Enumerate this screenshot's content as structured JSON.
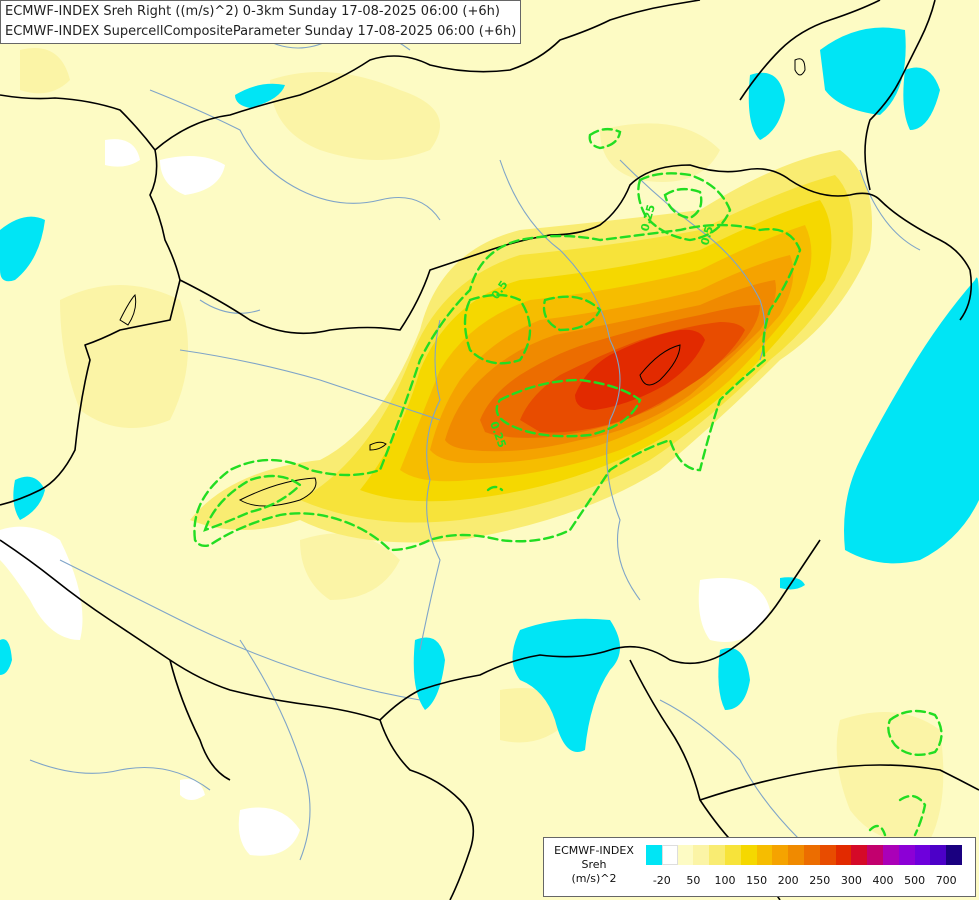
{
  "title": {
    "line1": "ECMWF-INDEX Sreh Right ((m/s)^2) 0-3km Sunday 17-08-2025 06:00 (+6h)",
    "line2": "ECMWF-INDEX SupercellCompositeParameter Sunday 17-08-2025 06:00 (+6h)"
  },
  "legend": {
    "line1": "ECMWF-INDEX",
    "line2": "Sreh",
    "line3": "(m/s)^2",
    "colors": [
      "#00e5f5",
      "#ffffff",
      "#fdfbc4",
      "#fbf4a6",
      "#f9ec72",
      "#f7e33a",
      "#f5d800",
      "#f6bd00",
      "#f5a300",
      "#f08a00",
      "#ec6d00",
      "#e84c00",
      "#e22a00",
      "#d50a28",
      "#c2006e",
      "#aa00b8",
      "#8c00d6",
      "#6e00dc",
      "#4c00c8",
      "#1a0080"
    ],
    "ticks": [
      "-20",
      "50",
      "100",
      "150",
      "200",
      "250",
      "300",
      "400",
      "500",
      "700"
    ]
  },
  "contours": {
    "label_a": "0.5",
    "label_b": "0.25",
    "label_c": "0.5",
    "label_d": "0.25"
  }
}
